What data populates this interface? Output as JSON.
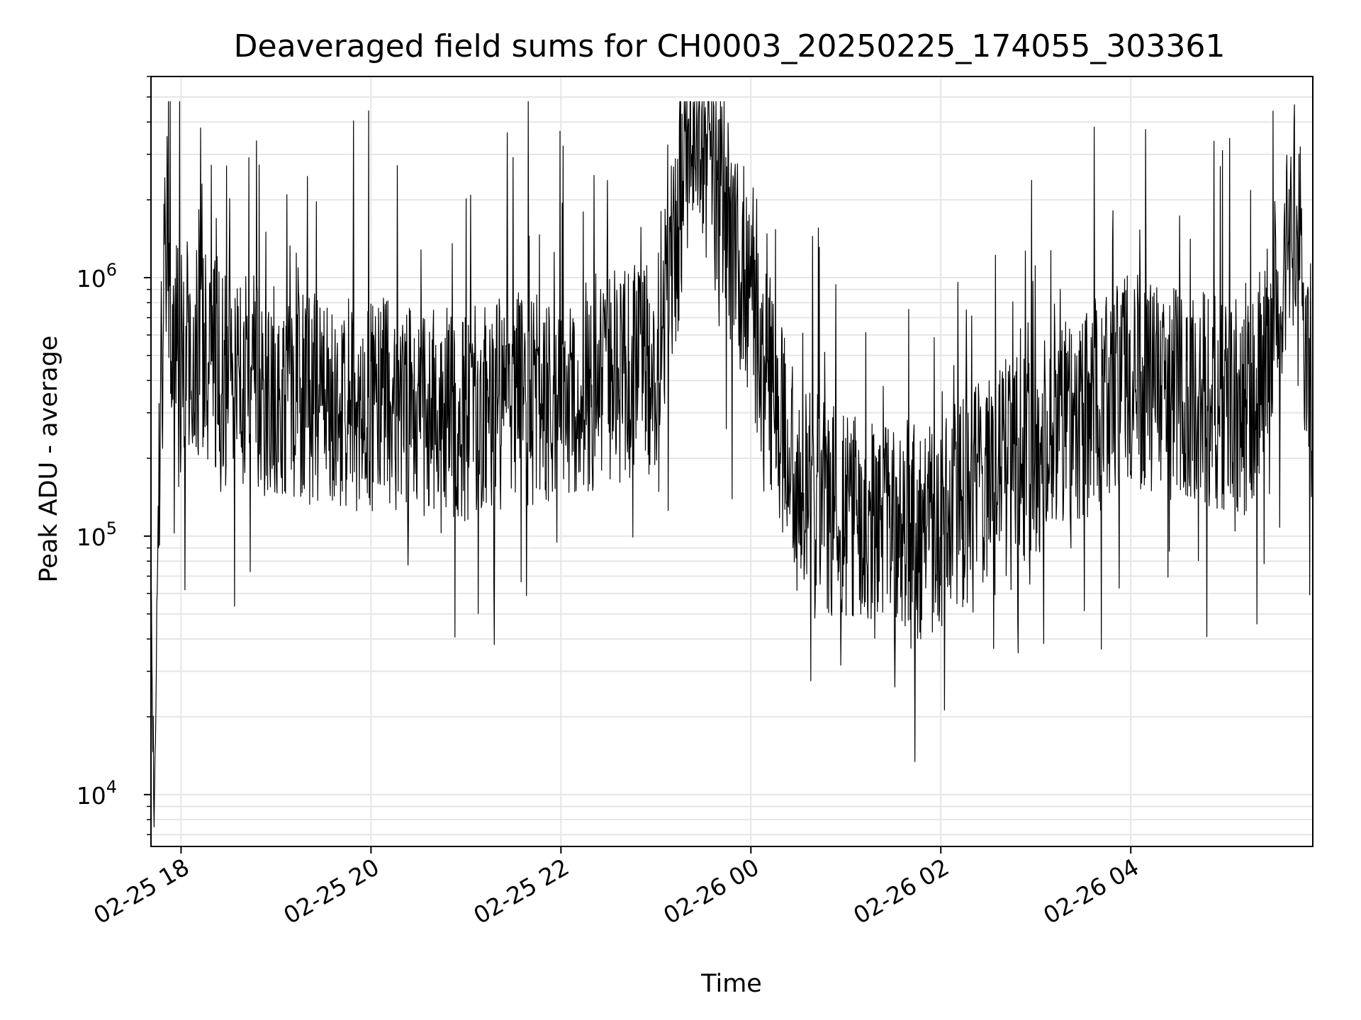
{
  "chart_data": {
    "type": "line",
    "title": "Deaveraged field sums for CH0003_20250225_174055_303361",
    "xlabel": "Time",
    "ylabel": "Peak ADU - average",
    "yscale": "log",
    "ylim": [
      6300,
      6000000
    ],
    "xlim": [
      "2025-02-25 17:41",
      "2025-02-26 05:55"
    ],
    "grid": true,
    "line_color": "#000000",
    "grid_color": "#e6e6e6",
    "x_ticks": [
      {
        "t": "2025-02-25 18:00",
        "label": "02-25 18"
      },
      {
        "t": "2025-02-25 20:00",
        "label": "02-25 20"
      },
      {
        "t": "2025-02-25 22:00",
        "label": "02-25 22"
      },
      {
        "t": "2025-02-26 00:00",
        "label": "02-26 00"
      },
      {
        "t": "2025-02-26 02:00",
        "label": "02-26 02"
      },
      {
        "t": "2025-02-26 04:00",
        "label": "02-26 04"
      }
    ],
    "y_ticks": [
      {
        "v": 10000,
        "base": "10",
        "exp": "4"
      },
      {
        "v": 100000,
        "base": "10",
        "exp": "5"
      },
      {
        "v": 1000000,
        "base": "10",
        "exp": "6"
      }
    ],
    "envelope": {
      "comment": "series is dense noise; listed key points read from the figure",
      "points": [
        {
          "t": "2025-02-25 17:41",
          "y": 60000
        },
        {
          "t": "2025-02-25 17:43",
          "y": 8500
        },
        {
          "t": "2025-02-25 17:46",
          "y": 150000
        },
        {
          "t": "2025-02-25 17:50",
          "y": 1800000
        },
        {
          "t": "2025-02-25 17:55",
          "y": 600000
        },
        {
          "t": "2025-02-25 19:00",
          "y": 350000
        },
        {
          "t": "2025-02-25 21:00",
          "y": 300000
        },
        {
          "t": "2025-02-25 23:00",
          "y": 450000
        },
        {
          "t": "2025-02-25 23:25",
          "y": 4500000
        },
        {
          "t": "2025-02-26 00:30",
          "y": 150000
        },
        {
          "t": "2025-02-26 01:40",
          "y": 90000
        },
        {
          "t": "2025-02-26 02:50",
          "y": 200000
        },
        {
          "t": "2025-02-26 04:00",
          "y": 400000
        },
        {
          "t": "2025-02-26 05:15",
          "y": 300000
        },
        {
          "t": "2025-02-26 05:45",
          "y": 2000000
        },
        {
          "t": "2025-02-26 05:55",
          "y": 200000
        }
      ]
    }
  }
}
